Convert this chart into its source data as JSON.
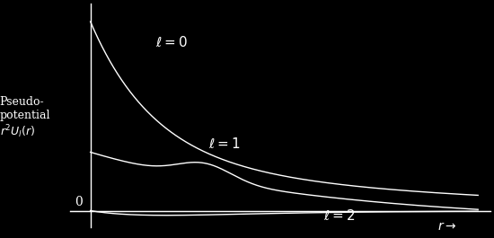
{
  "background_color": "#000000",
  "line_color": "#ffffff",
  "axis_color": "#ffffff",
  "text_color": "#ffffff",
  "curve_label_l0": "$\\ell = 0$",
  "curve_label_l1": "$\\ell = 1$",
  "curve_label_l2": "$\\ell = 2$",
  "xlabel": "$r \\rightarrow$",
  "zero_label": "0",
  "ylabel_line1": "Pseudo-",
  "ylabel_line2": "potential",
  "ylabel_line3": "$r^2U_l(r)$",
  "xlim": [
    -0.5,
    9.8
  ],
  "ylim": [
    -0.45,
    5.8
  ],
  "label_fontsize": 11,
  "ylabel_fontsize": 9
}
